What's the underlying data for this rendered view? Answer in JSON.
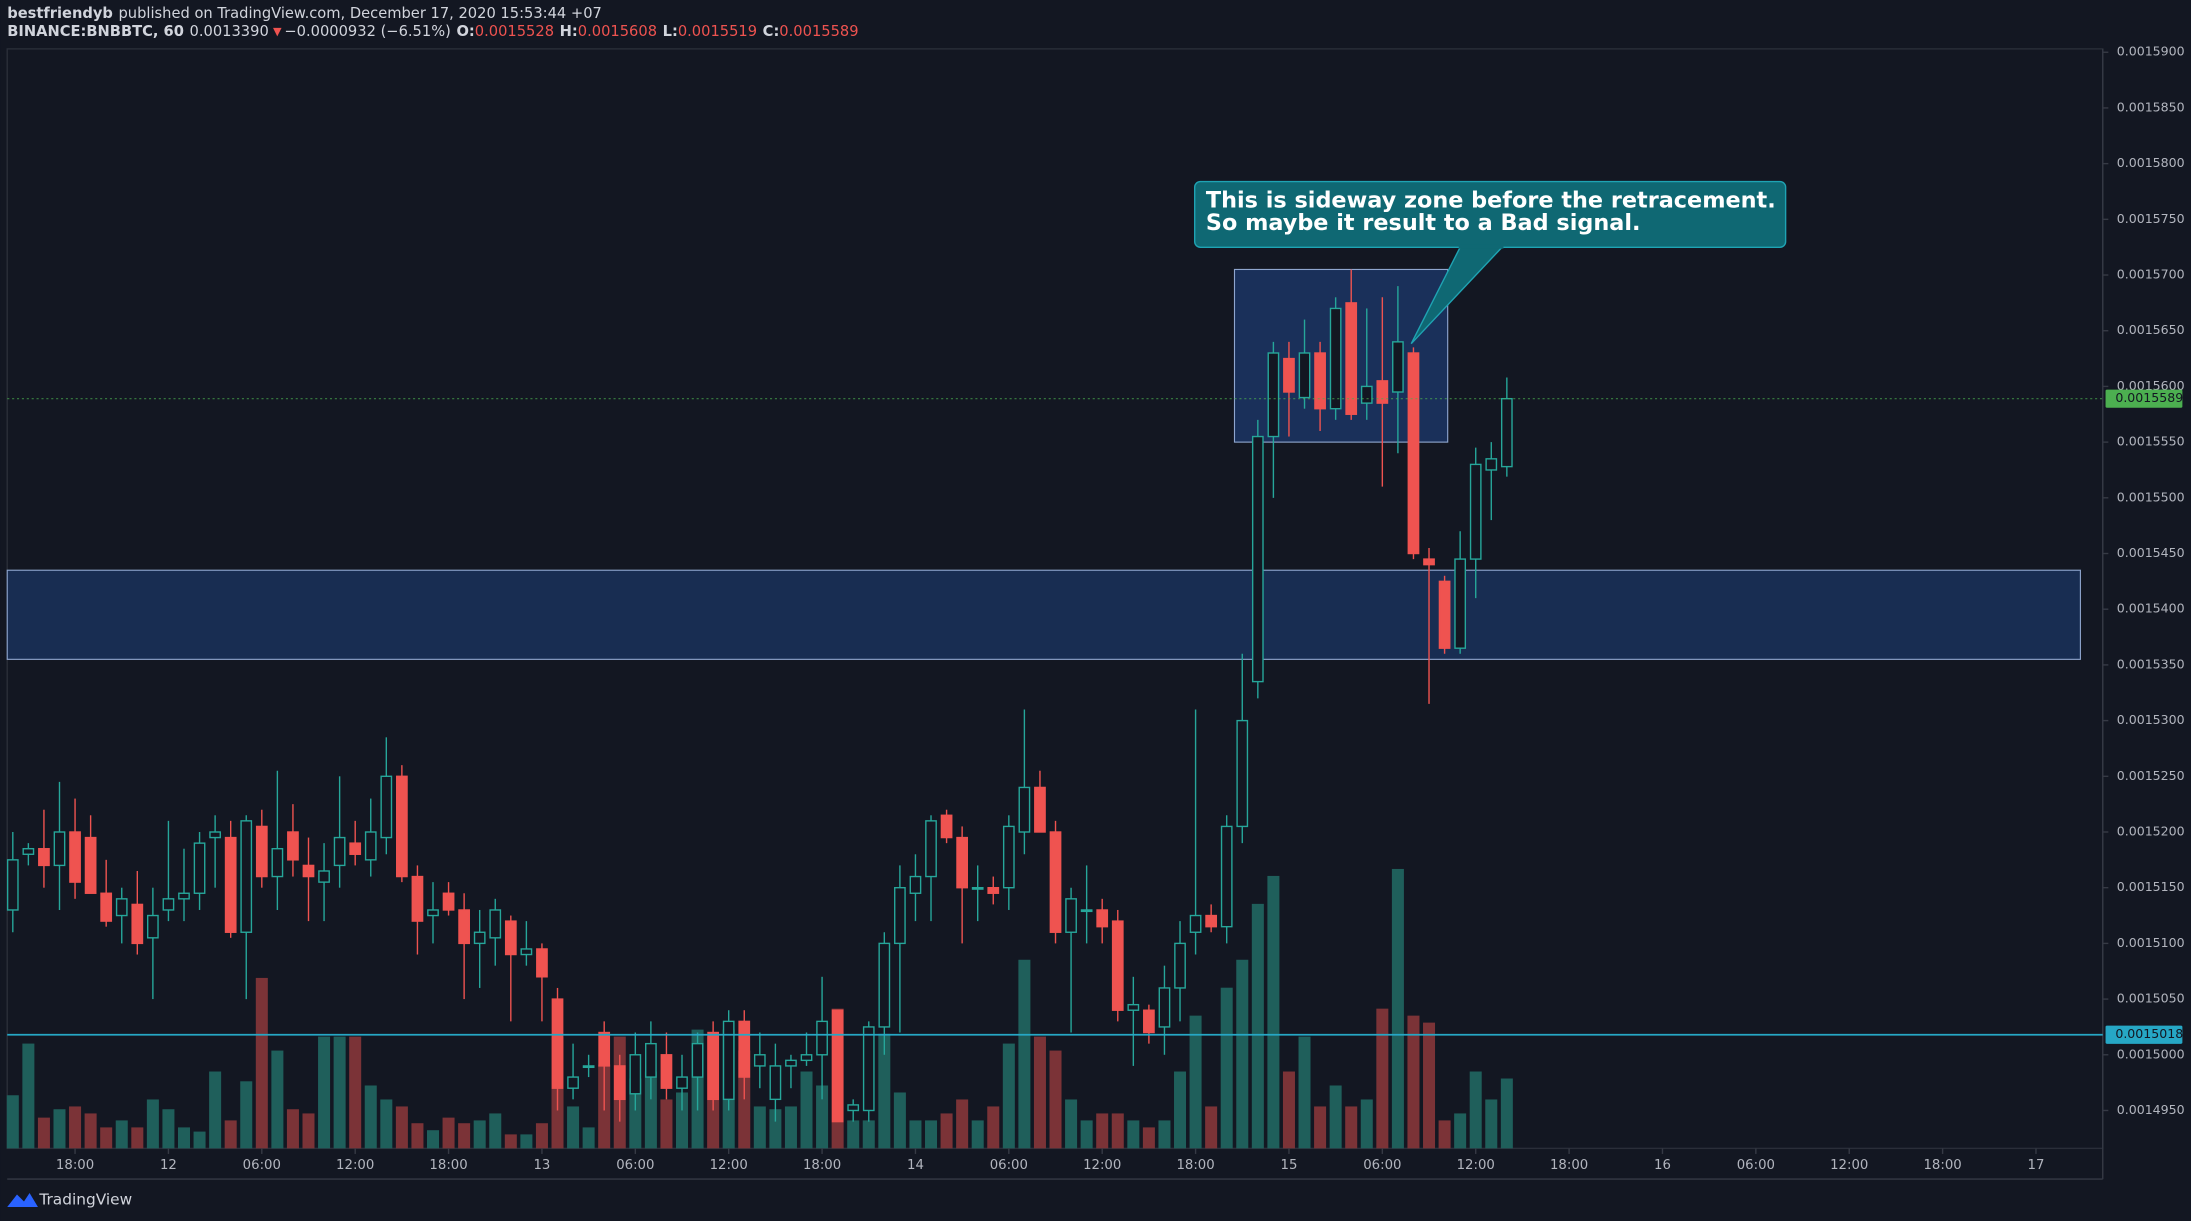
{
  "header": {
    "author": "bestfriendyb",
    "published": "published on TradingView.com, December 17, 2020 15:53:44 +07",
    "symbol": "BINANCE:BNBBTC, 60",
    "price": "0.0013390",
    "change_arrow": "▼",
    "change": "−0.0000932 (−6.51%)",
    "ohlc": [
      {
        "label": "O:",
        "value": "0.0015528"
      },
      {
        "label": "H:",
        "value": "0.0015608"
      },
      {
        "label": "L:",
        "value": "0.0015519"
      },
      {
        "label": "C:",
        "value": "0.0015589"
      }
    ]
  },
  "footer": {
    "brand": "TradingView"
  },
  "chart_data": {
    "type": "candlestick",
    "categories": [
      null,
      null,
      null,
      null,
      "18:00",
      null,
      null,
      null,
      null,
      null,
      "12",
      null,
      null,
      null,
      null,
      null,
      "06:00",
      null,
      null,
      null,
      null,
      null,
      "12:00",
      null,
      null,
      null,
      null,
      null,
      "18:00",
      null,
      null,
      null,
      null,
      null,
      "13",
      null,
      null,
      null,
      null,
      null,
      "06:00",
      null,
      null,
      null,
      null,
      null,
      "12:00",
      null,
      null,
      null,
      null,
      null,
      "18:00",
      null,
      null,
      null,
      null,
      null,
      "14",
      null,
      null,
      null,
      null,
      null,
      "06:00",
      null,
      null,
      null,
      null,
      null,
      "12:00",
      null,
      null,
      null,
      null,
      null,
      "18:00",
      null,
      null,
      null,
      null,
      null,
      "15",
      null,
      null,
      null,
      null,
      null,
      "06:00",
      null,
      null,
      null,
      null,
      null,
      "12:00",
      null,
      null,
      null,
      null,
      null,
      "18:00",
      null,
      null,
      null,
      null,
      null,
      "16",
      null,
      null,
      null,
      null,
      null,
      "06:00",
      null,
      null,
      null,
      null,
      null,
      "12:00",
      null,
      null,
      null,
      null,
      null,
      "18:00",
      null,
      null,
      null,
      null,
      null,
      "17",
      null,
      null,
      null
    ],
    "open": [
      0.001513,
      0.001518,
      0.0015185,
      0.001517,
      0.00152,
      0.0015195,
      0.0015145,
      0.0015125,
      0.0015135,
      0.0015105,
      0.001513,
      0.001514,
      0.0015145,
      0.0015195,
      0.0015195,
      0.001511,
      0.0015205,
      0.001516,
      0.00152,
      0.001517,
      0.0015155,
      0.001517,
      0.001519,
      0.0015175,
      0.0015195,
      0.001525,
      0.001516,
      0.0015125,
      0.0015145,
      0.001513,
      0.00151,
      0.0015105,
      0.001512,
      0.001509,
      0.0015095,
      0.001505,
      0.001497,
      0.001499,
      0.001502,
      0.001499,
      0.0014965,
      0.001498,
      0.0015,
      0.001497,
      0.001498,
      0.001502,
      0.001496,
      0.001503,
      0.001499,
      0.001496,
      0.001499,
      0.0014995,
      0.0015,
      0.001504,
      0.001495,
      0.001495,
      0.0015025,
      0.00151,
      0.0015145,
      0.001516,
      0.0015215,
      0.0015195,
      0.001515,
      0.001515,
      0.001515,
      0.00152,
      0.001524,
      0.00152,
      0.001511,
      0.001513,
      0.001513,
      0.001512,
      0.001504,
      0.001504,
      0.0015025,
      0.001506,
      0.001511,
      0.0015125,
      0.0015115,
      0.0015205,
      0.0015335,
      0.0015555,
      0.0015625,
      0.001559,
      0.001563,
      0.001558,
      0.0015675,
      0.0015585,
      0.0015605,
      0.0015595,
      0.001563,
      0.0015445,
      0.0015425,
      0.0015365,
      0.0015445,
      0.0015525,
      0.0015528,
      null,
      null,
      null,
      null,
      null,
      null,
      null,
      null,
      null,
      null,
      null,
      null,
      null,
      null,
      null,
      null,
      null,
      null,
      null,
      null,
      null,
      null,
      null,
      null,
      null,
      null,
      null,
      null,
      null,
      null,
      null,
      null,
      null,
      null,
      null,
      null,
      null
    ],
    "high": [
      0.00152,
      0.001519,
      0.001522,
      0.0015245,
      0.001523,
      0.0015215,
      0.0015175,
      0.001515,
      0.0015165,
      0.001515,
      0.001521,
      0.0015185,
      0.00152,
      0.0015215,
      0.001521,
      0.0015215,
      0.001522,
      0.0015255,
      0.0015225,
      0.0015195,
      0.001519,
      0.001525,
      0.001521,
      0.001523,
      0.0015285,
      0.001526,
      0.001517,
      0.0015155,
      0.0015155,
      0.0015145,
      0.001513,
      0.001514,
      0.0015125,
      0.001512,
      0.00151,
      0.001506,
      0.001501,
      0.0015,
      0.001503,
      0.0015,
      0.001502,
      0.001503,
      0.001502,
      0.0015,
      0.001502,
      0.001503,
      0.001504,
      0.001504,
      0.001502,
      0.001501,
      0.0015,
      0.001502,
      0.001507,
      0.001504,
      0.001496,
      0.001503,
      0.001511,
      0.001517,
      0.001518,
      0.0015215,
      0.001522,
      0.0015205,
      0.001517,
      0.001516,
      0.0015215,
      0.001531,
      0.0015255,
      0.001521,
      0.001515,
      0.001517,
      0.001514,
      0.001513,
      0.001507,
      0.0015045,
      0.001508,
      0.001512,
      0.001531,
      0.0015135,
      0.0015215,
      0.001536,
      0.001557,
      0.001564,
      0.001564,
      0.001566,
      0.001564,
      0.001568,
      0.0015705,
      0.001567,
      0.001568,
      0.001569,
      0.0015635,
      0.0015455,
      0.001543,
      0.001547,
      0.0015545,
      0.001555,
      0.0015608,
      null,
      null,
      null,
      null,
      null,
      null,
      null,
      null,
      null,
      null,
      null,
      null,
      null,
      null,
      null,
      null,
      null,
      null,
      null,
      null,
      null,
      null,
      null,
      null,
      null,
      null,
      null,
      null,
      null,
      null,
      null,
      null,
      null,
      null,
      null,
      null,
      null
    ],
    "low": [
      0.001511,
      0.001517,
      0.001515,
      0.001513,
      0.001514,
      0.0015145,
      0.0015115,
      0.00151,
      0.001509,
      0.001505,
      0.001512,
      0.001512,
      0.001513,
      0.001515,
      0.0015105,
      0.001505,
      0.001515,
      0.001513,
      0.001516,
      0.001512,
      0.001512,
      0.001515,
      0.001517,
      0.001516,
      0.001518,
      0.0015155,
      0.001509,
      0.00151,
      0.0015125,
      0.001505,
      0.001506,
      0.001508,
      0.001503,
      0.001508,
      0.001503,
      0.001495,
      0.001496,
      0.001498,
      0.001495,
      0.001494,
      0.001495,
      0.001496,
      0.001496,
      0.001495,
      0.001495,
      0.001495,
      0.001495,
      0.001496,
      0.001497,
      0.001494,
      0.001497,
      0.001499,
      0.001496,
      0.001494,
      0.001494,
      0.001494,
      0.0015,
      0.001502,
      0.001512,
      0.001512,
      0.001519,
      0.00151,
      0.001512,
      0.0015135,
      0.001513,
      0.001518,
      0.00152,
      0.00151,
      0.001502,
      0.00151,
      0.00151,
      0.001503,
      0.001499,
      0.001501,
      0.0015,
      0.001503,
      0.001509,
      0.001511,
      0.00151,
      0.001519,
      0.001532,
      0.00155,
      0.0015555,
      0.001558,
      0.001556,
      0.001557,
      0.001557,
      0.001557,
      0.001551,
      0.001554,
      0.0015445,
      0.0015315,
      0.001536,
      0.001536,
      0.001541,
      0.001548,
      0.0015519,
      null,
      null,
      null,
      null,
      null,
      null,
      null,
      null,
      null,
      null,
      null,
      null,
      null,
      null,
      null,
      null,
      null,
      null,
      null,
      null,
      null,
      null,
      null,
      null,
      null,
      null,
      null,
      null,
      null,
      null,
      null,
      null,
      null,
      null,
      null,
      null,
      null
    ],
    "close": [
      0.0015175,
      0.0015185,
      0.001517,
      0.00152,
      0.0015155,
      0.0015145,
      0.001512,
      0.001514,
      0.00151,
      0.0015125,
      0.001514,
      0.0015145,
      0.001519,
      0.00152,
      0.001511,
      0.001521,
      0.001516,
      0.0015185,
      0.0015175,
      0.001516,
      0.0015165,
      0.0015195,
      0.001518,
      0.00152,
      0.001525,
      0.001516,
      0.001512,
      0.001513,
      0.001513,
      0.00151,
      0.001511,
      0.001513,
      0.001509,
      0.0015095,
      0.001507,
      0.001497,
      0.001498,
      0.001499,
      0.001499,
      0.001496,
      0.0015,
      0.001501,
      0.001497,
      0.001498,
      0.001501,
      0.001496,
      0.001503,
      0.001498,
      0.0015,
      0.001499,
      0.0014995,
      0.0015,
      0.001503,
      0.001494,
      0.0014955,
      0.0015025,
      0.00151,
      0.001515,
      0.001516,
      0.001521,
      0.0015195,
      0.001515,
      0.001515,
      0.0015145,
      0.0015205,
      0.001524,
      0.00152,
      0.001511,
      0.001514,
      0.001513,
      0.0015115,
      0.001504,
      0.0015045,
      0.001502,
      0.001506,
      0.00151,
      0.0015125,
      0.0015115,
      0.0015205,
      0.00153,
      0.0015555,
      0.001563,
      0.0015595,
      0.001563,
      0.001558,
      0.001567,
      0.0015575,
      0.00156,
      0.0015585,
      0.001564,
      0.001545,
      0.001544,
      0.0015365,
      0.0015445,
      0.001553,
      0.0015535,
      0.0015589,
      null,
      null,
      null,
      null,
      null,
      null,
      null,
      null,
      null,
      null,
      null,
      null,
      null,
      null,
      null,
      null,
      null,
      null,
      null,
      null,
      null,
      null,
      null,
      null,
      null,
      null,
      null,
      null,
      null,
      null,
      null,
      null,
      null,
      null,
      null,
      null,
      null
    ],
    "volume": [
      38,
      75,
      22,
      28,
      30,
      25,
      15,
      20,
      15,
      35,
      28,
      15,
      12,
      55,
      20,
      48,
      122,
      70,
      28,
      25,
      80,
      80,
      80,
      45,
      35,
      30,
      18,
      13,
      22,
      18,
      20,
      25,
      10,
      10,
      18,
      80,
      30,
      15,
      60,
      80,
      50,
      55,
      35,
      40,
      85,
      80,
      85,
      70,
      30,
      28,
      30,
      55,
      45,
      100,
      20,
      20,
      82,
      40,
      20,
      20,
      25,
      35,
      20,
      30,
      75,
      135,
      80,
      70,
      35,
      20,
      25,
      25,
      20,
      15,
      20,
      55,
      95,
      30,
      115,
      135,
      175,
      195,
      55,
      80,
      30,
      45,
      30,
      35,
      100,
      200,
      95,
      90,
      20,
      25,
      55,
      35,
      50,
      null,
      null,
      null,
      null,
      null,
      null,
      null,
      null,
      null,
      null,
      null,
      null,
      null,
      null,
      null,
      null,
      null,
      null,
      null,
      null,
      null,
      null,
      null,
      null,
      null,
      null,
      null,
      null,
      null,
      null,
      null,
      null,
      null,
      null,
      null,
      null,
      null
    ],
    "up_color": "#26a69a",
    "down_color": "#ef5350",
    "up_volume_color": "#1f5f5b",
    "down_volume_color": "#7b3337",
    "ylim": [
      0.0014916,
      0.0015903
    ],
    "yticks": [
      {
        "value": 0.00159,
        "label": "0.0015900"
      },
      {
        "value": 0.001585,
        "label": "0.0015850"
      },
      {
        "value": 0.00158,
        "label": "0.0015800"
      },
      {
        "value": 0.001575,
        "label": "0.0015750"
      },
      {
        "value": 0.00157,
        "label": "0.0015700"
      },
      {
        "value": 0.001565,
        "label": "0.0015650"
      },
      {
        "value": 0.00156,
        "label": "0.0015600"
      },
      {
        "value": 0.001555,
        "label": "0.0015550"
      },
      {
        "value": 0.00155,
        "label": "0.0015500"
      },
      {
        "value": 0.001545,
        "label": "0.0015450"
      },
      {
        "value": 0.00154,
        "label": "0.0015400"
      },
      {
        "value": 0.001535,
        "label": "0.0015350"
      },
      {
        "value": 0.00153,
        "label": "0.0015300"
      },
      {
        "value": 0.001525,
        "label": "0.0015250"
      },
      {
        "value": 0.00152,
        "label": "0.0015200"
      },
      {
        "value": 0.001515,
        "label": "0.0015150"
      },
      {
        "value": 0.00151,
        "label": "0.0015100"
      },
      {
        "value": 0.001505,
        "label": "0.0015050"
      },
      {
        "value": 0.0015,
        "label": "0.0015000"
      },
      {
        "value": 0.001495,
        "label": "0.0014950"
      }
    ],
    "hlines": [
      {
        "value": 0.0015018,
        "color": "#26a7c5",
        "style": "solid"
      },
      {
        "value": 0.0015589,
        "color": "#4caf50",
        "style": "dotted"
      }
    ],
    "zones": [
      {
        "ylim": [
          0.0015355,
          0.0015435
        ],
        "color": "#1b3563"
      },
      {
        "ylim": [
          0.001555,
          0.0015705
        ],
        "xrange": [
          78.5,
          92.2
        ],
        "color": "#1e3a6e"
      }
    ],
    "annotation": {
      "lines": [
        "This is sideway zone before the retracement.",
        "So maybe it result to a Bad signal."
      ]
    }
  }
}
